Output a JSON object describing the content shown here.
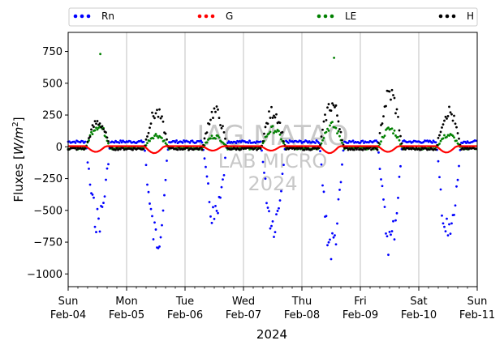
{
  "chart_data": {
    "type": "scatter",
    "title": "",
    "xlabel": "2024",
    "ylabel": "Fluxes [W/m²]",
    "ylabel_main": "Fluxes [",
    "ylabel_unit_base": "W/m",
    "ylabel_unit_sup": "2",
    "ylabel_close": "]",
    "ylim": [
      -1100,
      900
    ],
    "yticks": [
      "750",
      "500",
      "250",
      "0",
      "−250",
      "−500",
      "−750",
      "−1000"
    ],
    "xrange_days": [
      "Feb-04",
      "Feb-11"
    ],
    "xticks": [
      {
        "day": "Sun",
        "date": "Feb-04"
      },
      {
        "day": "Mon",
        "date": "Feb-05"
      },
      {
        "day": "Tue",
        "date": "Feb-06"
      },
      {
        "day": "Wed",
        "date": "Feb-07"
      },
      {
        "day": "Thu",
        "date": "Feb-08"
      },
      {
        "day": "Fri",
        "date": "Feb-09"
      },
      {
        "day": "Sat",
        "date": "Feb-10"
      },
      {
        "day": "Sun",
        "date": "Feb-11"
      }
    ],
    "grid": "vertical-at-days",
    "legend_position": "top",
    "legend": [
      {
        "name": "Rn",
        "color": "#0000ff"
      },
      {
        "name": "G",
        "color": "#ff0000"
      },
      {
        "name": "LE",
        "color": "#008000"
      },
      {
        "name": "H",
        "color": "#000000"
      }
    ],
    "series": [
      {
        "name": "Rn",
        "color": "#0000ff",
        "daily_minimum": [
          -630,
          -780,
          -620,
          -650,
          -850,
          -800,
          -770
        ],
        "night_level": 40
      },
      {
        "name": "G",
        "color": "#ff0000",
        "daily_minimum": [
          -40,
          -50,
          -30,
          -30,
          -50,
          -40,
          -45
        ],
        "night_level": 5
      },
      {
        "name": "LE",
        "color": "#008000",
        "daily_maximum": [
          730,
          100,
          90,
          150,
          700,
          150,
          100
        ],
        "night_level": -10
      },
      {
        "name": "H",
        "color": "#000000",
        "daily_maximum": [
          210,
          290,
          300,
          300,
          360,
          450,
          300
        ],
        "night_level": -15
      }
    ]
  },
  "watermark": {
    "line1": "IAG MATAO",
    "line2": "LAB MICRO",
    "line3": "2024"
  }
}
